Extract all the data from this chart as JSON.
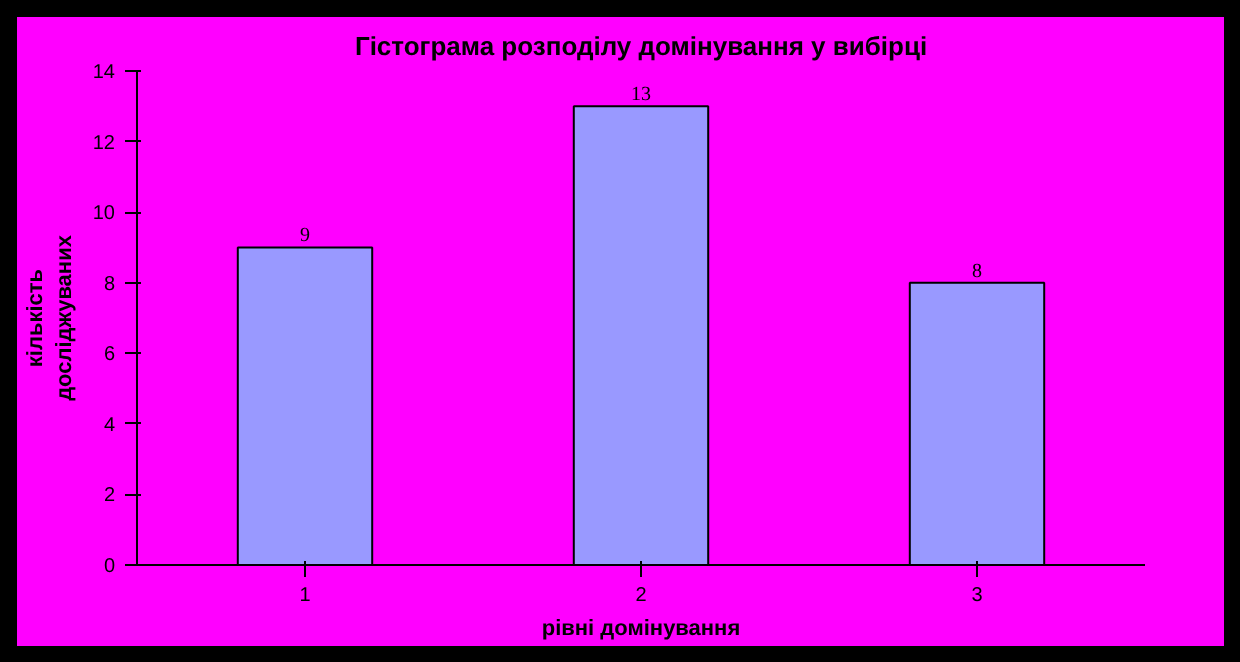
{
  "chart_data": {
    "type": "bar",
    "title": "Гістограма розподілу домінування у вибірці",
    "xlabel": "рівні домінування",
    "ylabel": "кількість досліджуваних",
    "categories": [
      "1",
      "2",
      "3"
    ],
    "values": [
      9,
      13,
      8
    ],
    "color": "#9999ff",
    "ylim": [
      0,
      14
    ],
    "yticks": [
      0,
      2,
      4,
      6,
      8,
      10,
      12,
      14
    ],
    "data_labels": true,
    "grid": false
  }
}
